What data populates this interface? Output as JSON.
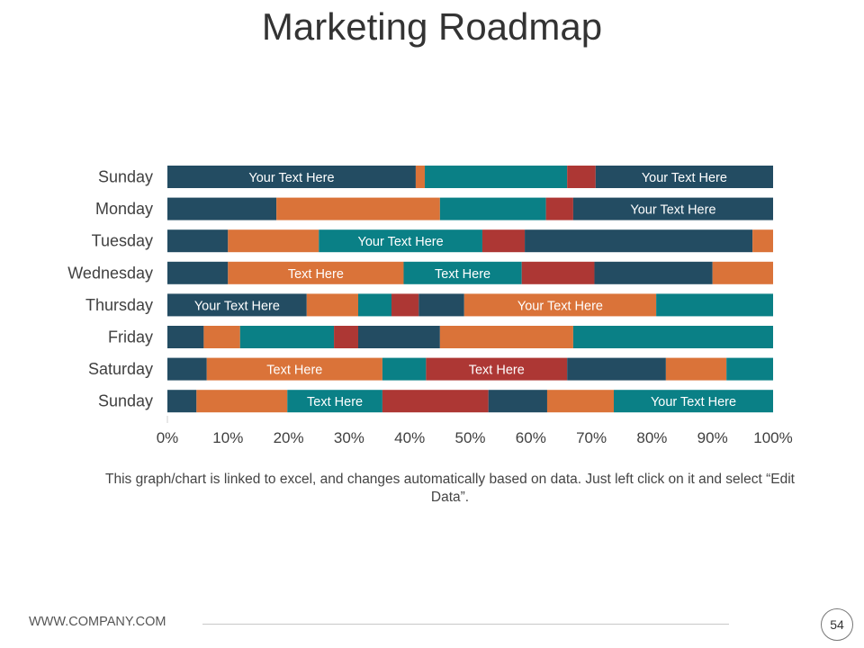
{
  "slide": {
    "title": "Marketing Roadmap",
    "caption": "This graph/chart is linked to excel, and changes automatically based on data. Just left click on it and select “Edit Data”.",
    "footer": "WWW.COMPANY.COM",
    "page_number": "54"
  },
  "colors": {
    "navy": "#234C62",
    "orange": "#DA7339",
    "teal": "#0A8086",
    "red": "#AD3734"
  },
  "chart_data": {
    "type": "bar",
    "orientation": "horizontal",
    "stacked": "percent",
    "categories": [
      "Sunday",
      "Monday",
      "Tuesday",
      "Wednesday",
      "Thursday",
      "Friday",
      "Saturday",
      "Sunday"
    ],
    "xlim": [
      0,
      100
    ],
    "x_ticks": [
      "0%",
      "10%",
      "20%",
      "30%",
      "40%",
      "50%",
      "60%",
      "70%",
      "80%",
      "90%",
      "100%"
    ],
    "grid": false,
    "legend": "none",
    "rows": [
      {
        "segments": [
          {
            "value": 41,
            "color": "navy",
            "label": "Your Text Here"
          },
          {
            "value": 1.5,
            "color": "orange"
          },
          {
            "value": 23.5,
            "color": "teal"
          },
          {
            "value": 4.7,
            "color": "red"
          },
          {
            "value": 29.3,
            "color": "navy",
            "label": "Your Text Here"
          }
        ]
      },
      {
        "segments": [
          {
            "value": 18,
            "color": "navy"
          },
          {
            "value": 27,
            "color": "orange"
          },
          {
            "value": 17.5,
            "color": "teal"
          },
          {
            "value": 4.5,
            "color": "red"
          },
          {
            "value": 33,
            "color": "navy",
            "label": "Your Text Here"
          }
        ]
      },
      {
        "segments": [
          {
            "value": 10,
            "color": "navy"
          },
          {
            "value": 15,
            "color": "orange"
          },
          {
            "value": 27,
            "color": "teal",
            "label": "Your Text Here"
          },
          {
            "value": 7,
            "color": "red"
          },
          {
            "value": 37.6,
            "color": "navy"
          },
          {
            "value": 3.4,
            "color": "orange"
          }
        ]
      },
      {
        "segments": [
          {
            "value": 10,
            "color": "navy"
          },
          {
            "value": 29,
            "color": "orange",
            "label": "Text Here"
          },
          {
            "value": 19.5,
            "color": "teal",
            "label": "Text Here"
          },
          {
            "value": 12,
            "color": "red"
          },
          {
            "value": 19.5,
            "color": "navy"
          },
          {
            "value": 10,
            "color": "orange"
          }
        ]
      },
      {
        "segments": [
          {
            "value": 23,
            "color": "navy",
            "label": "Your Text Here"
          },
          {
            "value": 8.5,
            "color": "orange"
          },
          {
            "value": 5.5,
            "color": "teal"
          },
          {
            "value": 4.5,
            "color": "red"
          },
          {
            "value": 7.5,
            "color": "navy"
          },
          {
            "value": 31.7,
            "color": "orange",
            "label": "Your Text Here"
          },
          {
            "value": 19.3,
            "color": "teal"
          }
        ]
      },
      {
        "segments": [
          {
            "value": 6,
            "color": "navy"
          },
          {
            "value": 6,
            "color": "orange"
          },
          {
            "value": 15.5,
            "color": "teal"
          },
          {
            "value": 4,
            "color": "red"
          },
          {
            "value": 13.5,
            "color": "navy"
          },
          {
            "value": 22,
            "color": "orange"
          },
          {
            "value": 33,
            "color": "teal"
          }
        ]
      },
      {
        "segments": [
          {
            "value": 6.5,
            "color": "navy"
          },
          {
            "value": 29,
            "color": "orange",
            "label": "Text Here"
          },
          {
            "value": 7.2,
            "color": "teal"
          },
          {
            "value": 23.3,
            "color": "red",
            "label": "Text Here"
          },
          {
            "value": 16.3,
            "color": "navy"
          },
          {
            "value": 10,
            "color": "orange"
          },
          {
            "value": 7.7,
            "color": "teal"
          }
        ]
      },
      {
        "segments": [
          {
            "value": 4.8,
            "color": "navy"
          },
          {
            "value": 15,
            "color": "orange"
          },
          {
            "value": 15.7,
            "color": "teal",
            "label": "Text Here"
          },
          {
            "value": 17.5,
            "color": "red"
          },
          {
            "value": 9.7,
            "color": "navy"
          },
          {
            "value": 11,
            "color": "orange"
          },
          {
            "value": 26.3,
            "color": "teal",
            "label": "Your Text Here"
          }
        ]
      }
    ]
  }
}
